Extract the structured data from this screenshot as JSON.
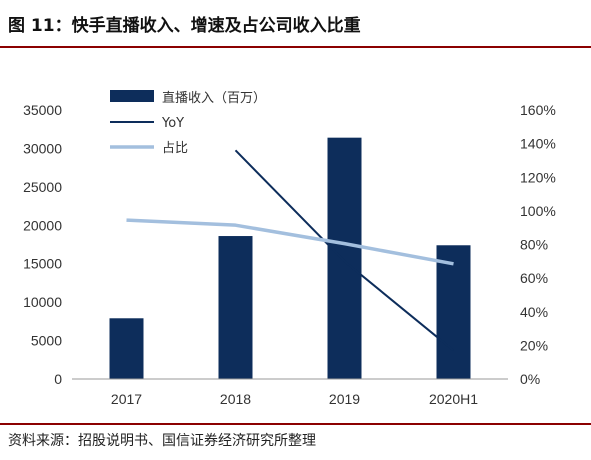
{
  "figure": {
    "title": "图 11：快手直播收入、增速及占公司收入比重",
    "source": "资料来源：招股说明书、国信证券经济研究所整理"
  },
  "chart_data": {
    "type": "bar",
    "categories": [
      "2017",
      "2018",
      "2019",
      "2020H1"
    ],
    "series": [
      {
        "name": "直播收入（百万）",
        "type": "bar",
        "axis": "left",
        "values": [
          7900,
          18600,
          31400,
          17400
        ]
      },
      {
        "name": "YoY",
        "type": "line",
        "axis": "right",
        "values": [
          null,
          136,
          70,
          17
        ]
      },
      {
        "name": "占比",
        "type": "line",
        "axis": "right",
        "values": [
          94.5,
          91.5,
          80.5,
          68.5
        ]
      }
    ],
    "left_axis": {
      "min": 0,
      "max": 35000,
      "ticks": [
        "0",
        "5000",
        "10000",
        "15000",
        "20000",
        "25000",
        "30000",
        "35000"
      ]
    },
    "right_axis": {
      "min": 0,
      "max": 160,
      "ticks": [
        "0%",
        "20%",
        "40%",
        "60%",
        "80%",
        "100%",
        "120%",
        "140%",
        "160%"
      ]
    },
    "grid": false,
    "legend_position": "top-left",
    "colors": {
      "bar": "#0d2d5b",
      "yoy": "#0d2d5b",
      "share": "#a3bfde"
    }
  }
}
